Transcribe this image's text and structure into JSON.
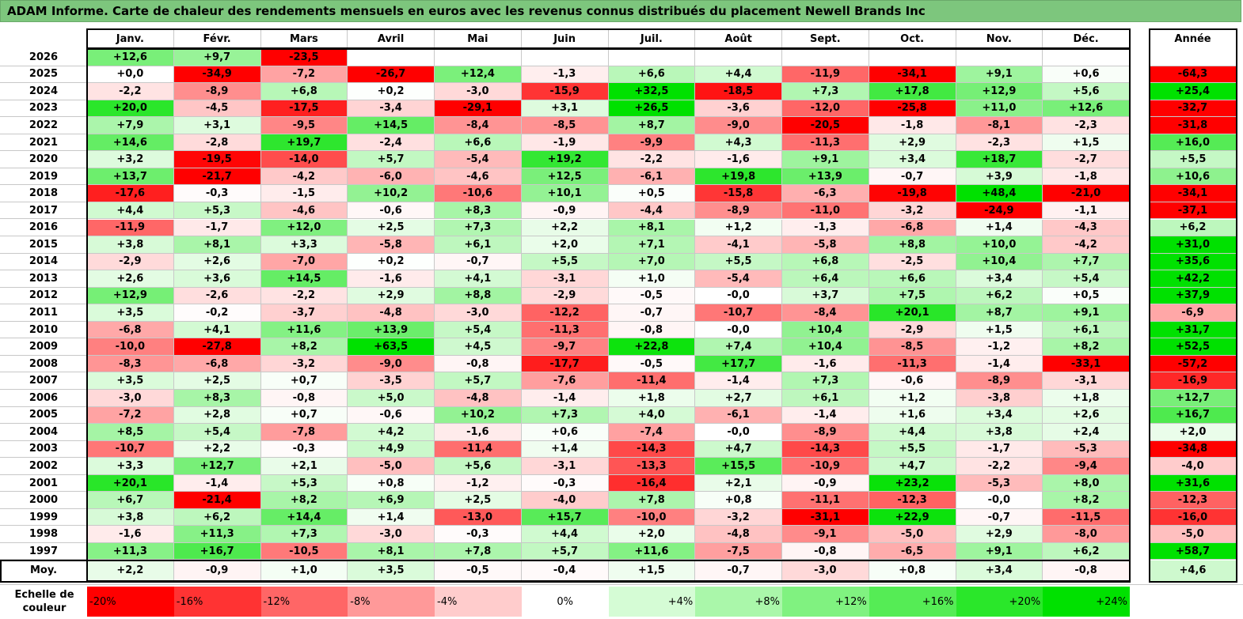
{
  "title": "ADAM Informe. Carte de chaleur des rendements mensuels en euros avec les revenus connus distribués du placement Newell Brands Inc",
  "chart_data": {
    "type": "heatmap",
    "months": [
      "Janv.",
      "Févr.",
      "Mars",
      "Avril",
      "Mai",
      "Juin",
      "Juil.",
      "Août",
      "Sept.",
      "Oct.",
      "Nov.",
      "Déc."
    ],
    "year_header": "Année",
    "rows": [
      {
        "year": "2026",
        "values": [
          "+12,6",
          "+9,7",
          "-23,5",
          "",
          "",
          "",
          "",
          "",
          "",
          "",
          "",
          ""
        ],
        "annual": ""
      },
      {
        "year": "2025",
        "values": [
          "+0,0",
          "-34,9",
          "-7,2",
          "-26,7",
          "+12,4",
          "-1,3",
          "+6,6",
          "+4,4",
          "-11,9",
          "-34,1",
          "+9,1",
          "+0,6"
        ],
        "annual": "-64,3"
      },
      {
        "year": "2024",
        "values": [
          "-2,2",
          "-8,9",
          "+6,8",
          "+0,2",
          "-3,0",
          "-15,9",
          "+32,5",
          "-18,5",
          "+7,3",
          "+17,8",
          "+12,9",
          "+5,6"
        ],
        "annual": "+25,4"
      },
      {
        "year": "2023",
        "values": [
          "+20,0",
          "-4,5",
          "-17,5",
          "-3,4",
          "-29,1",
          "+3,1",
          "+26,5",
          "-3,6",
          "-12,0",
          "-25,8",
          "+11,0",
          "+12,6"
        ],
        "annual": "-32,7"
      },
      {
        "year": "2022",
        "values": [
          "+7,9",
          "+3,1",
          "-9,5",
          "+14,5",
          "-8,4",
          "-8,5",
          "+8,7",
          "-9,0",
          "-20,5",
          "-1,8",
          "-8,1",
          "-2,3"
        ],
        "annual": "-31,8"
      },
      {
        "year": "2021",
        "values": [
          "+14,6",
          "-2,8",
          "+19,7",
          "-2,4",
          "+6,6",
          "-1,9",
          "-9,9",
          "+4,3",
          "-11,3",
          "+2,9",
          "-2,3",
          "+1,5"
        ],
        "annual": "+16,0"
      },
      {
        "year": "2020",
        "values": [
          "+3,2",
          "-19,5",
          "-14,0",
          "+5,7",
          "-5,4",
          "+19,2",
          "-2,2",
          "-1,6",
          "+9,1",
          "+3,4",
          "+18,7",
          "-2,7"
        ],
        "annual": "+5,5"
      },
      {
        "year": "2019",
        "values": [
          "+13,7",
          "-21,7",
          "-4,2",
          "-6,0",
          "-4,6",
          "+12,5",
          "-6,1",
          "+19,8",
          "+13,9",
          "-0,7",
          "+3,9",
          "-1,8"
        ],
        "annual": "+10,6"
      },
      {
        "year": "2018",
        "values": [
          "-17,6",
          "-0,3",
          "-1,5",
          "+10,2",
          "-10,6",
          "+10,1",
          "+0,5",
          "-15,8",
          "-6,3",
          "-19,8",
          "+48,4",
          "-21,0"
        ],
        "annual": "-34,1"
      },
      {
        "year": "2017",
        "values": [
          "+4,4",
          "+5,3",
          "-4,6",
          "-0,6",
          "+8,3",
          "-0,9",
          "-4,4",
          "-8,9",
          "-11,0",
          "-3,2",
          "-24,9",
          "-1,1"
        ],
        "annual": "-37,1"
      },
      {
        "year": "2016",
        "values": [
          "-11,9",
          "-1,7",
          "+12,0",
          "+2,5",
          "+7,3",
          "+2,2",
          "+8,1",
          "+1,2",
          "-1,3",
          "-6,8",
          "+1,4",
          "-4,3"
        ],
        "annual": "+6,2"
      },
      {
        "year": "2015",
        "values": [
          "+3,8",
          "+8,1",
          "+3,3",
          "-5,8",
          "+6,1",
          "+2,0",
          "+7,1",
          "-4,1",
          "-5,8",
          "+8,8",
          "+10,0",
          "-4,2"
        ],
        "annual": "+31,0"
      },
      {
        "year": "2014",
        "values": [
          "-2,9",
          "+2,6",
          "-7,0",
          "+0,2",
          "-0,7",
          "+5,5",
          "+7,0",
          "+5,5",
          "+6,8",
          "-2,5",
          "+10,4",
          "+7,7"
        ],
        "annual": "+35,6"
      },
      {
        "year": "2013",
        "values": [
          "+2,6",
          "+3,6",
          "+14,5",
          "-1,6",
          "+4,1",
          "-3,1",
          "+1,0",
          "-5,4",
          "+6,4",
          "+6,6",
          "+3,4",
          "+5,4"
        ],
        "annual": "+42,2"
      },
      {
        "year": "2012",
        "values": [
          "+12,9",
          "-2,6",
          "-2,2",
          "+2,9",
          "+8,8",
          "-2,9",
          "-0,5",
          "-0,0",
          "+3,7",
          "+7,5",
          "+6,2",
          "+0,5"
        ],
        "annual": "+37,9"
      },
      {
        "year": "2011",
        "values": [
          "+3,5",
          "-0,2",
          "-3,7",
          "-4,8",
          "-3,0",
          "-12,2",
          "-0,7",
          "-10,7",
          "-8,4",
          "+20,1",
          "+8,7",
          "+9,1"
        ],
        "annual": "-6,9"
      },
      {
        "year": "2010",
        "values": [
          "-6,8",
          "+4,1",
          "+11,6",
          "+13,9",
          "+5,4",
          "-11,3",
          "-0,8",
          "-0,0",
          "+10,4",
          "-2,9",
          "+1,5",
          "+6,1"
        ],
        "annual": "+31,7"
      },
      {
        "year": "2009",
        "values": [
          "-10,0",
          "-27,8",
          "+8,2",
          "+63,5",
          "+4,5",
          "-9,7",
          "+22,8",
          "+7,4",
          "+10,4",
          "-8,5",
          "-1,2",
          "+8,2"
        ],
        "annual": "+52,5"
      },
      {
        "year": "2008",
        "values": [
          "-8,3",
          "-6,8",
          "-3,2",
          "-9,0",
          "-0,8",
          "-17,7",
          "-0,5",
          "+17,7",
          "-1,6",
          "-11,3",
          "-1,4",
          "-33,1"
        ],
        "annual": "-57,2"
      },
      {
        "year": "2007",
        "values": [
          "+3,5",
          "+2,5",
          "+0,7",
          "-3,5",
          "+5,7",
          "-7,6",
          "-11,4",
          "-1,4",
          "+7,3",
          "-0,6",
          "-8,9",
          "-3,1"
        ],
        "annual": "-16,9"
      },
      {
        "year": "2006",
        "values": [
          "-3,0",
          "+8,3",
          "-0,8",
          "+5,0",
          "-4,8",
          "-1,4",
          "+1,8",
          "+2,7",
          "+6,1",
          "+1,2",
          "-3,8",
          "+1,8"
        ],
        "annual": "+12,7"
      },
      {
        "year": "2005",
        "values": [
          "-7,2",
          "+2,8",
          "+0,7",
          "-0,6",
          "+10,2",
          "+7,3",
          "+4,0",
          "-6,1",
          "-1,4",
          "+1,6",
          "+3,4",
          "+2,6"
        ],
        "annual": "+16,7"
      },
      {
        "year": "2004",
        "values": [
          "+8,5",
          "+5,4",
          "-7,8",
          "+4,2",
          "-1,6",
          "+0,6",
          "-7,4",
          "-0,0",
          "-8,9",
          "+4,4",
          "+3,8",
          "+2,4"
        ],
        "annual": "+2,0"
      },
      {
        "year": "2003",
        "values": [
          "-10,7",
          "+2,2",
          "-0,3",
          "+4,9",
          "-11,4",
          "+1,4",
          "-14,3",
          "+4,7",
          "-14,3",
          "+5,5",
          "-1,7",
          "-5,3"
        ],
        "annual": "-34,8"
      },
      {
        "year": "2002",
        "values": [
          "+3,3",
          "+12,7",
          "+2,1",
          "-5,0",
          "+5,6",
          "-3,1",
          "-13,3",
          "+15,5",
          "-10,9",
          "+4,7",
          "-2,2",
          "-9,4"
        ],
        "annual": "-4,0"
      },
      {
        "year": "2001",
        "values": [
          "+20,1",
          "-1,4",
          "+5,3",
          "+0,8",
          "-1,2",
          "-0,3",
          "-16,4",
          "+2,1",
          "-0,9",
          "+23,2",
          "-5,3",
          "+8,0"
        ],
        "annual": "+31,6"
      },
      {
        "year": "2000",
        "values": [
          "+6,7",
          "-21,4",
          "+8,2",
          "+6,9",
          "+2,5",
          "-4,0",
          "+7,8",
          "+0,8",
          "-11,1",
          "-12,3",
          "-0,0",
          "+8,2"
        ],
        "annual": "-12,3"
      },
      {
        "year": "1999",
        "values": [
          "+3,8",
          "+6,2",
          "+14,4",
          "+1,4",
          "-13,0",
          "+15,7",
          "-10,0",
          "-3,2",
          "-31,1",
          "+22,9",
          "-0,7",
          "-11,5"
        ],
        "annual": "-16,0"
      },
      {
        "year": "1998",
        "values": [
          "-1,6",
          "+11,3",
          "+7,3",
          "-3,0",
          "-0,3",
          "+4,4",
          "+2,0",
          "-4,8",
          "-9,1",
          "-5,0",
          "+2,9",
          "-8,0"
        ],
        "annual": "-5,0"
      },
      {
        "year": "1997",
        "values": [
          "+11,3",
          "+16,7",
          "-10,5",
          "+8,1",
          "+7,8",
          "+5,7",
          "+11,6",
          "-7,5",
          "-0,8",
          "-6,5",
          "+9,1",
          "+6,2"
        ],
        "annual": "+58,7"
      }
    ],
    "average": {
      "label": "Moy.",
      "values": [
        "+2,2",
        "-0,9",
        "+1,0",
        "+3,5",
        "-0,5",
        "-0,4",
        "+1,5",
        "-0,7",
        "-3,0",
        "+0,8",
        "+3,4",
        "-0,8"
      ],
      "annual": "+4,6"
    },
    "legend": {
      "title": "Echelle de couleur",
      "items": [
        {
          "label": "-20%",
          "value": -20,
          "color": "#ff0000"
        },
        {
          "label": "-16%",
          "value": -16,
          "color": "#ff3333"
        },
        {
          "label": "-12%",
          "value": -12,
          "color": "#ff6666"
        },
        {
          "label": "-8%",
          "value": -8,
          "color": "#ff9999"
        },
        {
          "label": "-4%",
          "value": -4,
          "color": "#ffcccc"
        },
        {
          "label": "0%",
          "value": 0,
          "color": "#ffffff"
        },
        {
          "label": "+4%",
          "value": 4,
          "color": "#d5fcd5"
        },
        {
          "label": "+8%",
          "value": 8,
          "color": "#aaf7aa"
        },
        {
          "label": "+12%",
          "value": 12,
          "color": "#80f280"
        },
        {
          "label": "+16%",
          "value": 16,
          "color": "#55ec55"
        },
        {
          "label": "+20%",
          "value": 20,
          "color": "#2ae72a"
        },
        {
          "label": "+24%",
          "value": 24,
          "color": "#00e100"
        }
      ]
    }
  }
}
